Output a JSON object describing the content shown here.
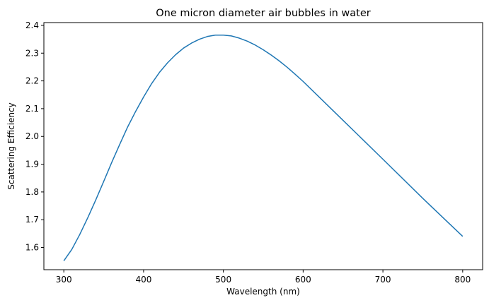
{
  "chart_data": {
    "type": "line",
    "title": "One micron diameter air bubbles in water",
    "xlabel": "Wavelength (nm)",
    "ylabel": "Scattering Efficiency",
    "xlim": [
      275,
      825
    ],
    "ylim": [
      1.52,
      2.41
    ],
    "xticks": [
      300,
      400,
      500,
      600,
      700,
      800
    ],
    "yticks": [
      1.6,
      1.7,
      1.8,
      1.9,
      2.0,
      2.1,
      2.2,
      2.3,
      2.4
    ],
    "grid": false,
    "series": [
      {
        "color": "#1f77b4",
        "x": [
          300,
          310,
          320,
          330,
          340,
          350,
          360,
          370,
          380,
          390,
          400,
          410,
          420,
          430,
          440,
          450,
          460,
          470,
          480,
          490,
          500,
          510,
          520,
          530,
          540,
          550,
          560,
          570,
          580,
          590,
          600,
          650,
          700,
          750,
          800
        ],
        "y": [
          1.552,
          1.593,
          1.647,
          1.707,
          1.771,
          1.838,
          1.906,
          1.971,
          2.034,
          2.09,
          2.142,
          2.19,
          2.231,
          2.265,
          2.294,
          2.318,
          2.336,
          2.35,
          2.36,
          2.365,
          2.365,
          2.362,
          2.354,
          2.343,
          2.329,
          2.312,
          2.293,
          2.272,
          2.249,
          2.224,
          2.198,
          2.058,
          1.918,
          1.777,
          1.64
        ]
      }
    ]
  }
}
